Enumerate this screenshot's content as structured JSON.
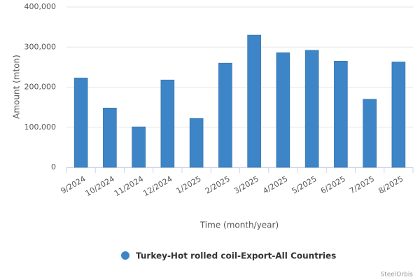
{
  "chart_data": {
    "type": "bar",
    "y_axis_label": "Amount (mton)",
    "x_axis_label": "Time (month/year)",
    "categories": [
      "9/2024",
      "10/2024",
      "11/2024",
      "12/2024",
      "1/2025",
      "2/2025",
      "3/2025",
      "4/2025",
      "5/2025",
      "6/2025",
      "7/2025",
      "8/2025"
    ],
    "series": [
      {
        "name": "Turkey-Hot rolled coil-Export-All Countries",
        "color": "#3d85c6",
        "values": [
          223000,
          148000,
          101000,
          218000,
          122000,
          260000,
          330000,
          286000,
          292000,
          265000,
          170000,
          263000
        ]
      }
    ],
    "ylim": [
      0,
      400000
    ],
    "yticks": [
      0,
      {
        "value": 100000,
        "label": "100,000"
      },
      {
        "value": 200000,
        "label": "200,000"
      },
      {
        "value": 300000,
        "label": "300,000"
      },
      {
        "value": 400000,
        "label": "400,000"
      }
    ],
    "grid": true,
    "legend": "bottom",
    "credit": "SteelOrbis"
  }
}
